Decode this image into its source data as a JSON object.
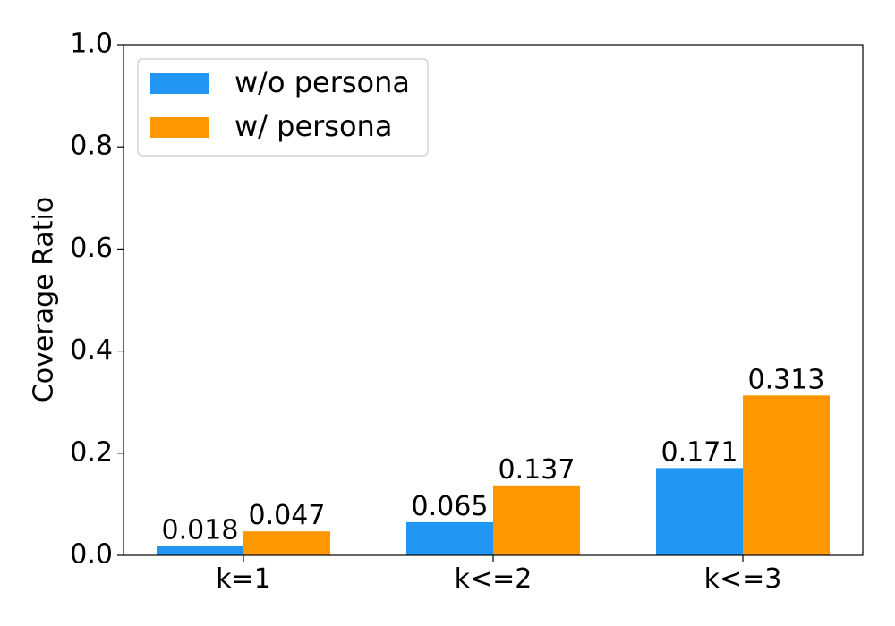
{
  "chart_data": {
    "type": "bar",
    "y_label": "Coverage Ratio",
    "categories": [
      "k=1",
      "k<=2",
      "k<=3"
    ],
    "series": [
      {
        "name": "w/o persona",
        "color": "#2196f3",
        "values": [
          0.018,
          0.065,
          0.171
        ]
      },
      {
        "name": "w/ persona",
        "color": "#ff9800",
        "values": [
          0.047,
          0.137,
          0.313
        ]
      }
    ],
    "ylim": [
      0,
      1
    ],
    "yticks": [
      {
        "value": 0,
        "label": "0.0"
      },
      {
        "value": 0.2,
        "label": "0.2"
      },
      {
        "value": 0.4,
        "label": "0.4"
      },
      {
        "value": 0.6,
        "label": "0.6"
      },
      {
        "value": 0.8,
        "label": "0.8"
      },
      {
        "value": 1,
        "label": "1.0"
      }
    ],
    "legend": "upper left"
  }
}
